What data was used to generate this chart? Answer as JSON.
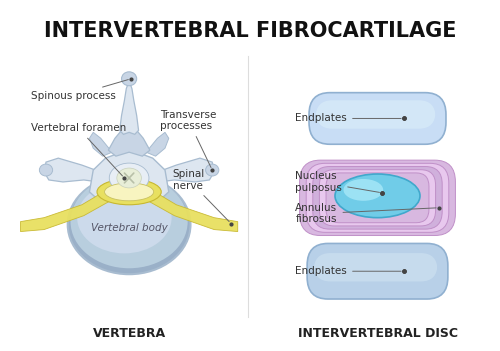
{
  "title": "INTERVERTEBRAL FIBROCARTILAGE",
  "title_fontsize": 15,
  "title_fontweight": "bold",
  "background_color": "#ffffff",
  "left_label": "VERTEBRA",
  "right_label": "INTERVERTEBRAL DISC",
  "labels_fontsize": 9,
  "colors": {
    "vertebra_body_outer": "#9ab0c8",
    "vertebra_body_inner": "#b8cede",
    "vertebra_body_light": "#ccdaeb",
    "vertebra_arch_base": "#c8d5e5",
    "vertebra_arch_light": "#dde6f0",
    "vertebra_arch_dark": "#a8bcd0",
    "spinal_nerve": "#e8e060",
    "spinal_nerve_edge": "#c8b830",
    "spinal_cord_outer": "#e8eed8",
    "spinal_cord_inner": "#f5f8f0",
    "disc_center_yellow": "#f0e890",
    "disc_center_edge": "#c8c060",
    "endplate_fill": "#b8d0e8",
    "endplate_fill2": "#c8ddf5",
    "endplate_edge": "#90b0d0",
    "annulus_outer_fill": "#d8b8e0",
    "annulus_mid_fill": "#e8c8ee",
    "annulus_inner_fill": "#d0b0dc",
    "annulus_line": "#c090c8",
    "nucleus_fill": "#70cce8",
    "nucleus_light": "#a8e8f8",
    "nucleus_edge": "#40a8cc",
    "label_color": "#333333",
    "dot_color": "#444444"
  }
}
